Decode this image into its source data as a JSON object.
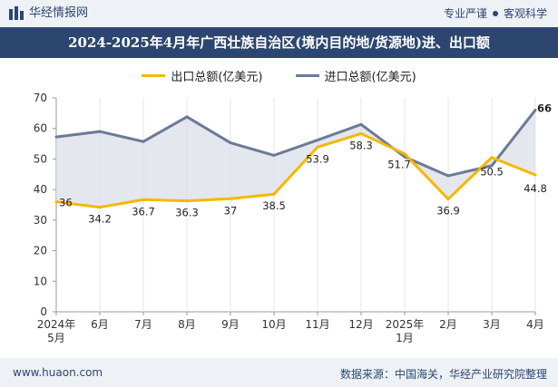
{
  "header": {
    "brand": "华经情报网",
    "tagline_left": "专业严谨",
    "tagline_right": "客观科学"
  },
  "title": "2024-2025年4月年广西壮族自治区(境内目的地/货源地)进、出口额",
  "footer": {
    "url": "www.huaon.com",
    "source": "数据来源：中国海关，华经产业研究院整理"
  },
  "colors": {
    "export": "#f5b800",
    "import": "#6b7a96",
    "fill": "#dde1ea",
    "header_bg": "#2c4670"
  },
  "chart_data": {
    "type": "line",
    "categories": [
      "2024年\n5月",
      "6月",
      "7月",
      "8月",
      "9月",
      "10月",
      "11月",
      "12月",
      "2025年\n1月",
      "2月",
      "3月",
      "4月"
    ],
    "series": [
      {
        "name": "出口总额(亿美元)",
        "values": [
          36,
          34.2,
          36.7,
          36.3,
          37,
          38.5,
          53.9,
          58.3,
          51.7,
          36.9,
          50.5,
          44.8
        ]
      },
      {
        "name": "进口总额(亿美元)",
        "values": [
          57.2,
          59,
          55.7,
          63.8,
          55.3,
          51.2,
          56.2,
          61.3,
          50.7,
          44.5,
          47.8,
          66
        ]
      }
    ],
    "yticks": [
      0,
      10,
      20,
      30,
      40,
      50,
      60,
      70
    ],
    "ylim": [
      0,
      70
    ],
    "labels": {
      "export": [
        "36",
        "34.2",
        "36.7",
        "36.3",
        "37",
        "38.5",
        "53.9",
        "58.3",
        "51.7",
        "36.9",
        "50.5",
        "44.8"
      ],
      "import_last": "66"
    },
    "legend_position": "top-center",
    "grid": "vertical"
  }
}
